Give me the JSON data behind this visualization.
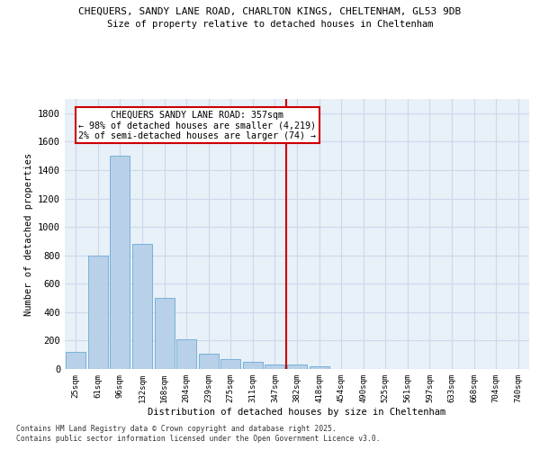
{
  "title_line1": "CHEQUERS, SANDY LANE ROAD, CHARLTON KINGS, CHELTENHAM, GL53 9DB",
  "title_line2": "Size of property relative to detached houses in Cheltenham",
  "xlabel": "Distribution of detached houses by size in Cheltenham",
  "ylabel": "Number of detached properties",
  "categories": [
    "25sqm",
    "61sqm",
    "96sqm",
    "132sqm",
    "168sqm",
    "204sqm",
    "239sqm",
    "275sqm",
    "311sqm",
    "347sqm",
    "382sqm",
    "418sqm",
    "454sqm",
    "490sqm",
    "525sqm",
    "561sqm",
    "597sqm",
    "633sqm",
    "668sqm",
    "704sqm",
    "740sqm"
  ],
  "values": [
    120,
    800,
    1500,
    880,
    500,
    210,
    110,
    70,
    50,
    30,
    30,
    20,
    0,
    0,
    0,
    0,
    0,
    0,
    0,
    0,
    0
  ],
  "bar_color": "#b8d0e8",
  "bar_edge_color": "#6aaad4",
  "vline_x": 9.5,
  "annotation_text": "CHEQUERS SANDY LANE ROAD: 357sqm\n← 98% of detached houses are smaller (4,219)\n2% of semi-detached houses are larger (74) →",
  "annotation_box_color": "#cc0000",
  "grid_color": "#ccd9ea",
  "background_color": "#e8f0f8",
  "ylim": [
    0,
    1900
  ],
  "yticks": [
    0,
    200,
    400,
    600,
    800,
    1000,
    1200,
    1400,
    1600,
    1800
  ],
  "footer_line1": "Contains HM Land Registry data © Crown copyright and database right 2025.",
  "footer_line2": "Contains public sector information licensed under the Open Government Licence v3.0."
}
